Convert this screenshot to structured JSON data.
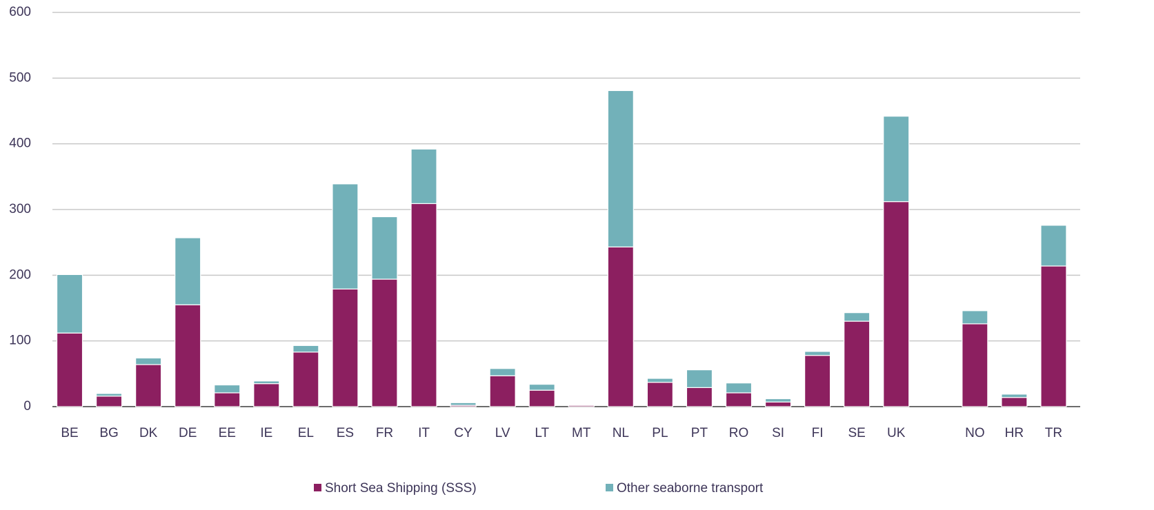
{
  "chart_data": {
    "type": "bar",
    "stacked": true,
    "categories": [
      "BE",
      "BG",
      "DK",
      "DE",
      "EE",
      "IE",
      "EL",
      "ES",
      "FR",
      "IT",
      "CY",
      "LV",
      "LT",
      "MT",
      "NL",
      "PL",
      "PT",
      "RO",
      "SI",
      "FI",
      "SE",
      "UK",
      null,
      "NO",
      "HR",
      "TR"
    ],
    "series": [
      {
        "name": "Short Sea Shipping (SSS)",
        "color": "#8c1f60",
        "values": [
          112,
          16,
          64,
          155,
          21,
          35,
          83,
          179,
          194,
          309,
          2,
          47,
          25,
          2,
          243,
          37,
          29,
          21,
          7,
          78,
          130,
          312,
          null,
          126,
          14,
          214
        ]
      },
      {
        "name": "Other seaborne transport",
        "color": "#72b1b9",
        "values": [
          89,
          4,
          10,
          102,
          12,
          4,
          10,
          160,
          95,
          83,
          4,
          11,
          9,
          1,
          238,
          6,
          27,
          15,
          5,
          6,
          13,
          130,
          null,
          20,
          5,
          62
        ]
      }
    ],
    "ylim": [
      0,
      600
    ],
    "yticks": [
      0,
      100,
      200,
      300,
      400,
      500,
      600
    ],
    "grid": true
  }
}
